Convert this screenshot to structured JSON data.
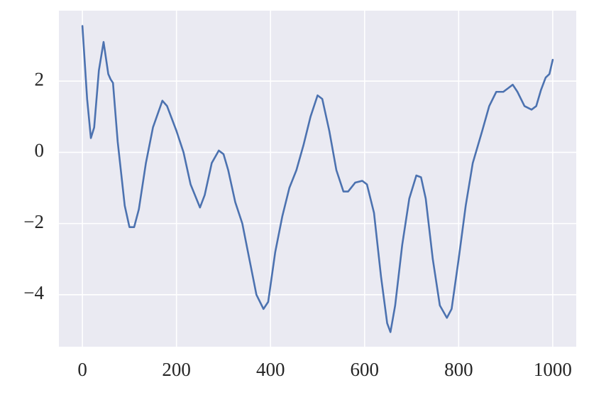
{
  "chart_data": {
    "type": "line",
    "x": [
      0,
      10,
      18,
      25,
      35,
      45,
      55,
      60,
      65,
      75,
      90,
      100,
      110,
      120,
      135,
      150,
      170,
      180,
      200,
      215,
      230,
      250,
      260,
      275,
      290,
      300,
      310,
      325,
      340,
      355,
      370,
      385,
      395,
      410,
      425,
      440,
      455,
      470,
      485,
      500,
      510,
      525,
      540,
      555,
      565,
      580,
      595,
      605,
      620,
      635,
      648,
      655,
      665,
      680,
      695,
      710,
      720,
      730,
      745,
      760,
      775,
      785,
      800,
      815,
      830,
      850,
      865,
      880,
      895,
      905,
      915,
      925,
      940,
      955,
      965,
      975,
      985,
      993,
      1000
    ],
    "values": [
      3.55,
      1.5,
      0.4,
      0.7,
      2.3,
      3.1,
      2.2,
      2.05,
      1.95,
      0.3,
      -1.5,
      -2.1,
      -2.1,
      -1.6,
      -0.3,
      0.7,
      1.45,
      1.3,
      0.6,
      0,
      -0.9,
      -1.55,
      -1.2,
      -0.3,
      0.05,
      -0.05,
      -0.5,
      -1.4,
      -2.0,
      -3.0,
      -4.0,
      -4.4,
      -4.2,
      -2.8,
      -1.8,
      -1.0,
      -0.5,
      0.2,
      1.0,
      1.6,
      1.5,
      0.6,
      -0.5,
      -1.1,
      -1.1,
      -0.85,
      -0.8,
      -0.9,
      -1.7,
      -3.5,
      -4.8,
      -5.05,
      -4.3,
      -2.6,
      -1.3,
      -0.65,
      -0.7,
      -1.3,
      -3.0,
      -4.3,
      -4.65,
      -4.4,
      -3.0,
      -1.5,
      -0.3,
      0.6,
      1.3,
      1.7,
      1.7,
      1.8,
      1.9,
      1.7,
      1.3,
      1.2,
      1.3,
      1.75,
      2.1,
      2.2,
      2.6
    ],
    "color": "#4c72b0",
    "xlim": [
      -50,
      1050
    ],
    "xticks": [
      0,
      200,
      400,
      600,
      800,
      1000
    ],
    "ylim": [
      -5.46,
      3.98
    ],
    "yticks": [
      {
        "value": -4,
        "label": "−4"
      },
      {
        "value": -2,
        "label": "−2"
      },
      0,
      2
    ],
    "grid": true
  }
}
